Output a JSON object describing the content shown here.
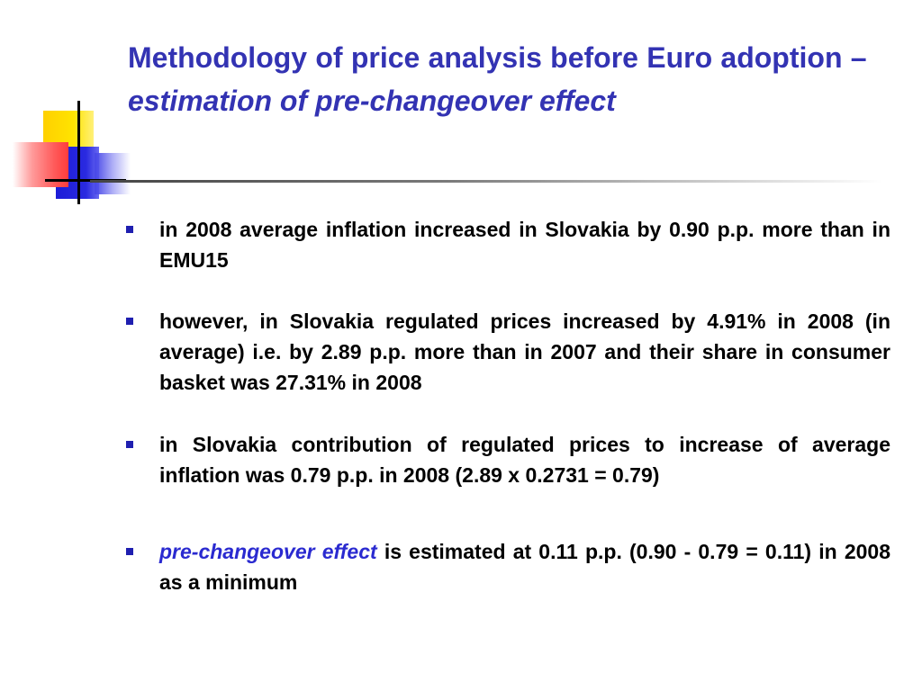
{
  "title": {
    "part1": "Methodology of price analysis before Euro adoption –",
    "part2": "estimation of pre-changeover effect"
  },
  "bullets": [
    {
      "text": "in 2008 average inflation increased in Slovakia by 0.90 p.p. more than in EMU15"
    },
    {
      "text": "however, in Slovakia regulated prices increased by 4.91% in 2008 (in average) i.e. by 2.89 p.p. more than in 2007 and their share in consumer basket was 27.31% in 2008"
    },
    {
      "text": "in Slovakia contribution of regulated prices to increase of average inflation  was 0.79 p.p. in 2008 (2.89 x 0.2731 = 0.79)"
    },
    {
      "lead": "pre-changeover effect",
      "text": " is estimated at 0.11 p.p. (0.90 - 0.79 = 0.11) in 2008 as a minimum"
    }
  ],
  "colors": {
    "title": "#3333b3",
    "bullet_marker": "#1f1fb0",
    "accent": "#2a2ad0",
    "body_text": "#000000"
  },
  "icons": {
    "logo": "colored-squares-logo-icon",
    "bullet": "square-bullet-icon"
  }
}
